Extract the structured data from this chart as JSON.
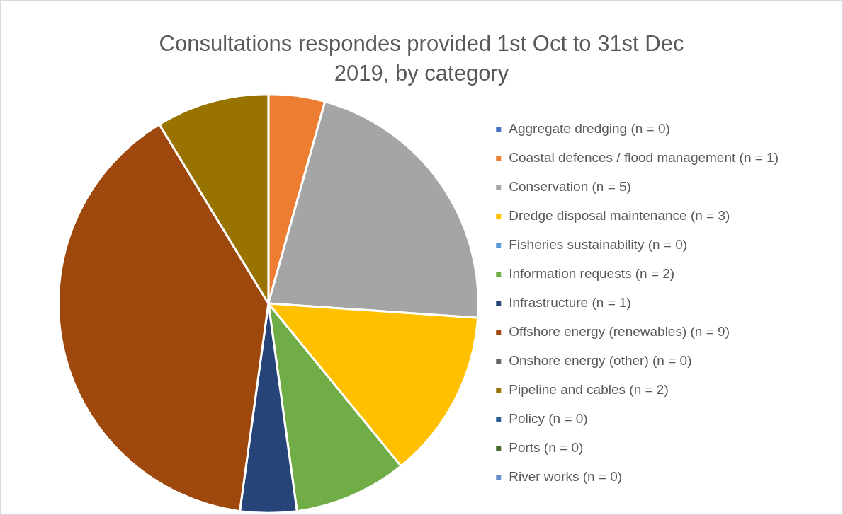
{
  "chart_data": {
    "type": "pie",
    "title": "Consultations respondes provided 1st Oct to 31st Dec 2019, by category",
    "categories": [
      "Aggregate dredging (n = 0)",
      "Coastal defences / flood management (n = 1)",
      "Conservation (n = 5)",
      "Dredge disposal maintenance (n = 3)",
      "Fisheries sustainability (n = 0)",
      "Information requests (n = 2)",
      "Infrastructure (n = 1)",
      "Offshore energy (renewables) (n = 9)",
      "Onshore energy (other) (n = 0)",
      "Pipeline and cables (n = 2)",
      "Policy (n = 0)",
      "Ports (n = 0)",
      "River works (n = 0)"
    ],
    "values": [
      0,
      1,
      5,
      3,
      0,
      2,
      1,
      9,
      0,
      2,
      0,
      0,
      0
    ],
    "colors": [
      "#4472c4",
      "#ed7d31",
      "#a5a5a5",
      "#ffc000",
      "#5b9bd5",
      "#70ad47",
      "#264478",
      "#9e480e",
      "#636363",
      "#997300",
      "#255e91",
      "#43682b",
      "#698ed0"
    ],
    "legend": "right"
  }
}
